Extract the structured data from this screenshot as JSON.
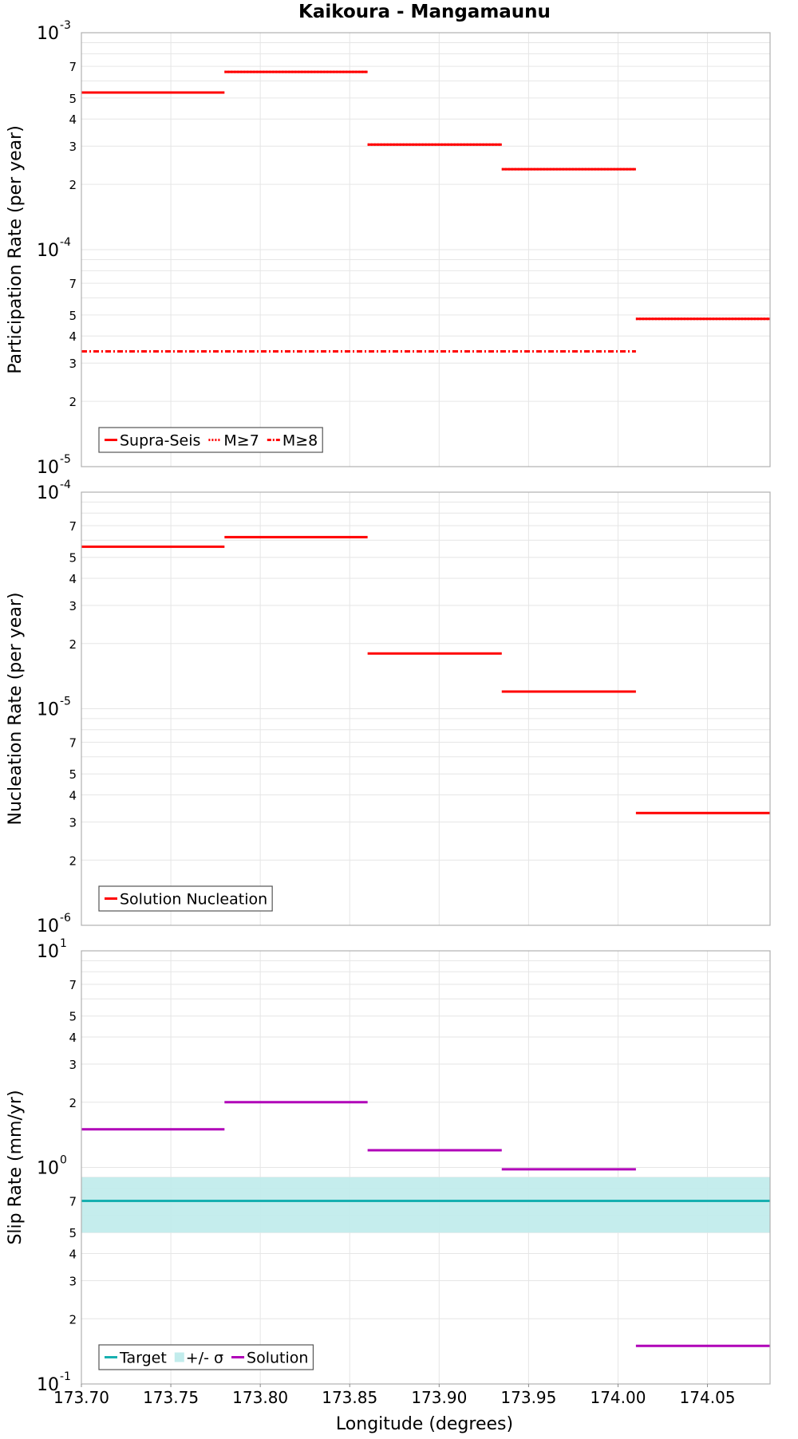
{
  "figure_title": "Kaikoura - Mangamaunu",
  "x_axis": {
    "label": "Longitude (degrees)",
    "range": [
      173.7,
      174.085
    ],
    "ticks": [
      173.7,
      173.75,
      173.8,
      173.85,
      173.9,
      173.95,
      174.0,
      174.05
    ],
    "tick_labels": [
      "173.70",
      "173.75",
      "173.80",
      "173.85",
      "173.90",
      "173.95",
      "174.00",
      "174.05"
    ]
  },
  "colors": {
    "solution_red": "#ff0000",
    "slip_solution": "#b000b8",
    "target": "#17b0b0",
    "target_band": "#c2ecec",
    "grid": "#e6e6e6",
    "frame": "#b0b0b0"
  },
  "chart_data": [
    {
      "type": "line",
      "panel": "participation",
      "ylabel": "Participation Rate (per year)",
      "yscale": "log",
      "ylim": [
        1e-05,
        0.001
      ],
      "y_major_labels": [
        {
          "base": "10",
          "exp": "-5",
          "value": 1e-05
        },
        {
          "base": "10",
          "exp": "-4",
          "value": 0.0001
        },
        {
          "base": "10",
          "exp": "-3",
          "value": 0.001
        }
      ],
      "legend": [
        "Supra-Seis",
        "M≥7",
        "M≥8"
      ],
      "series": [
        {
          "name": "Supra-Seis",
          "style": "solid",
          "segments": [
            {
              "x": [
                173.7,
                173.78
              ],
              "y": 0.00053
            },
            {
              "x": [
                173.78,
                173.86
              ],
              "y": 0.00066
            },
            {
              "x": [
                173.86,
                173.935
              ],
              "y": 0.000305
            },
            {
              "x": [
                173.935,
                174.01
              ],
              "y": 0.000235
            },
            {
              "x": [
                174.01,
                174.085
              ],
              "y": 4.8e-05
            }
          ]
        },
        {
          "name": "M≥7",
          "style": "dotted",
          "segments": [
            {
              "x": [
                173.7,
                173.78
              ],
              "y": 0.00053
            },
            {
              "x": [
                173.78,
                173.86
              ],
              "y": 0.00066
            },
            {
              "x": [
                173.86,
                173.935
              ],
              "y": 0.000305
            },
            {
              "x": [
                173.935,
                174.01
              ],
              "y": 0.000235
            },
            {
              "x": [
                174.01,
                174.085
              ],
              "y": 4.8e-05
            }
          ]
        },
        {
          "name": "M≥8",
          "style": "dashdot",
          "segments": [
            {
              "x": [
                173.7,
                174.01
              ],
              "y": 3.4e-05
            }
          ]
        }
      ]
    },
    {
      "type": "line",
      "panel": "nucleation",
      "ylabel": "Nucleation Rate (per year)",
      "yscale": "log",
      "ylim": [
        1e-06,
        0.0001
      ],
      "y_major_labels": [
        {
          "base": "10",
          "exp": "-6",
          "value": 1e-06
        },
        {
          "base": "10",
          "exp": "-5",
          "value": 1e-05
        },
        {
          "base": "10",
          "exp": "-4",
          "value": 0.0001
        }
      ],
      "legend": [
        "Solution Nucleation"
      ],
      "series": [
        {
          "name": "Solution Nucleation",
          "style": "solid",
          "segments": [
            {
              "x": [
                173.7,
                173.78
              ],
              "y": 5.6e-05
            },
            {
              "x": [
                173.78,
                173.86
              ],
              "y": 6.2e-05
            },
            {
              "x": [
                173.86,
                173.935
              ],
              "y": 1.8e-05
            },
            {
              "x": [
                173.935,
                174.01
              ],
              "y": 1.2e-05
            },
            {
              "x": [
                174.01,
                174.085
              ],
              "y": 3.3e-06
            }
          ]
        }
      ]
    },
    {
      "type": "line",
      "panel": "slip",
      "ylabel": "Slip Rate (mm/yr)",
      "yscale": "log",
      "ylim": [
        0.1,
        10
      ],
      "y_major_labels": [
        {
          "base": "10",
          "exp": "-1",
          "value": 0.1
        },
        {
          "base": "10",
          "exp": "0",
          "value": 1
        },
        {
          "base": "10",
          "exp": "1",
          "value": 10
        }
      ],
      "legend": [
        "Target",
        "+/- σ",
        "Solution"
      ],
      "band": {
        "name": "+/- σ",
        "x": [
          173.7,
          174.085
        ],
        "y_low": 0.5,
        "y_high": 0.9
      },
      "series": [
        {
          "name": "Target",
          "style": "solid",
          "segments": [
            {
              "x": [
                173.7,
                174.085
              ],
              "y": 0.7
            }
          ]
        },
        {
          "name": "Solution",
          "style": "solid",
          "segments": [
            {
              "x": [
                173.7,
                173.78
              ],
              "y": 1.5
            },
            {
              "x": [
                173.78,
                173.86
              ],
              "y": 2.0
            },
            {
              "x": [
                173.86,
                173.935
              ],
              "y": 1.2
            },
            {
              "x": [
                173.935,
                174.01
              ],
              "y": 0.98
            },
            {
              "x": [
                174.01,
                174.085
              ],
              "y": 0.15
            }
          ]
        }
      ]
    }
  ]
}
